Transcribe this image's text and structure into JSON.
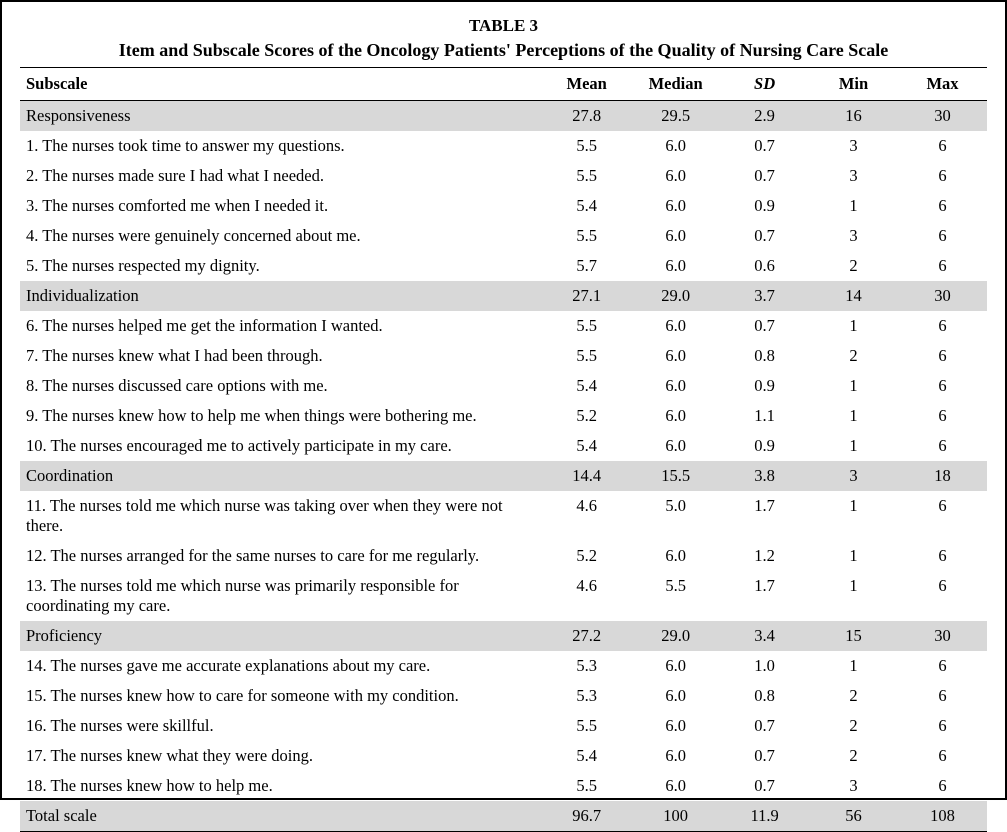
{
  "table": {
    "label": "TABLE 3",
    "title": "Item and Subscale Scores of the Oncology Patients' Perceptions of the Quality of Nursing Care Scale",
    "columns": [
      "Subscale",
      "Mean",
      "Median",
      "SD",
      "Min",
      "Max"
    ],
    "rows": [
      {
        "type": "sub",
        "label": "Responsiveness",
        "mean": "27.8",
        "median": "29.5",
        "sd": "2.9",
        "min": "16",
        "max": "30"
      },
      {
        "type": "item",
        "label": "1. The nurses took time to answer my questions.",
        "mean": "5.5",
        "median": "6.0",
        "sd": "0.7",
        "min": "3",
        "max": "6"
      },
      {
        "type": "item",
        "label": "2. The nurses made sure I had what I needed.",
        "mean": "5.5",
        "median": "6.0",
        "sd": "0.7",
        "min": "3",
        "max": "6"
      },
      {
        "type": "item",
        "label": "3. The nurses comforted me when I needed it.",
        "mean": "5.4",
        "median": "6.0",
        "sd": "0.9",
        "min": "1",
        "max": "6"
      },
      {
        "type": "item",
        "label": "4. The nurses were genuinely concerned about me.",
        "mean": "5.5",
        "median": "6.0",
        "sd": "0.7",
        "min": "3",
        "max": "6"
      },
      {
        "type": "item",
        "label": "5. The nurses respected my dignity.",
        "mean": "5.7",
        "median": "6.0",
        "sd": "0.6",
        "min": "2",
        "max": "6"
      },
      {
        "type": "sub",
        "label": "Individualization",
        "mean": "27.1",
        "median": "29.0",
        "sd": "3.7",
        "min": "14",
        "max": "30"
      },
      {
        "type": "item",
        "label": "6. The nurses helped me get the information I wanted.",
        "mean": "5.5",
        "median": "6.0",
        "sd": "0.7",
        "min": "1",
        "max": "6"
      },
      {
        "type": "item",
        "label": "7. The nurses knew what I had been through.",
        "mean": "5.5",
        "median": "6.0",
        "sd": "0.8",
        "min": "2",
        "max": "6"
      },
      {
        "type": "item",
        "label": "8. The nurses discussed care options with me.",
        "mean": "5.4",
        "median": "6.0",
        "sd": "0.9",
        "min": "1",
        "max": "6"
      },
      {
        "type": "item",
        "label": "9. The nurses knew how to help me when things were bothering me.",
        "mean": "5.2",
        "median": "6.0",
        "sd": "1.1",
        "min": "1",
        "max": "6"
      },
      {
        "type": "item",
        "label": "10. The nurses encouraged me to actively participate in my care.",
        "mean": "5.4",
        "median": "6.0",
        "sd": "0.9",
        "min": "1",
        "max": "6"
      },
      {
        "type": "sub",
        "label": "Coordination",
        "mean": "14.4",
        "median": "15.5",
        "sd": "3.8",
        "min": "3",
        "max": "18"
      },
      {
        "type": "item",
        "label": "11. The nurses told me which nurse was taking over when they were not there.",
        "mean": "4.6",
        "median": "5.0",
        "sd": "1.7",
        "min": "1",
        "max": "6"
      },
      {
        "type": "item",
        "label": "12. The nurses arranged for the same nurses to care for me regularly.",
        "mean": "5.2",
        "median": "6.0",
        "sd": "1.2",
        "min": "1",
        "max": "6"
      },
      {
        "type": "item",
        "label": "13. The nurses told me which nurse was primarily responsible for coordinating my care.",
        "mean": "4.6",
        "median": "5.5",
        "sd": "1.7",
        "min": "1",
        "max": "6"
      },
      {
        "type": "sub",
        "label": "Proficiency",
        "mean": "27.2",
        "median": "29.0",
        "sd": "3.4",
        "min": "15",
        "max": "30"
      },
      {
        "type": "item",
        "label": "14. The nurses gave me accurate explanations about my care.",
        "mean": "5.3",
        "median": "6.0",
        "sd": "1.0",
        "min": "1",
        "max": "6"
      },
      {
        "type": "item",
        "label": "15. The nurses knew how to care for someone with my condition.",
        "mean": "5.3",
        "median": "6.0",
        "sd": "0.8",
        "min": "2",
        "max": "6"
      },
      {
        "type": "item",
        "label": "16. The nurses were skillful.",
        "mean": "5.5",
        "median": "6.0",
        "sd": "0.7",
        "min": "2",
        "max": "6"
      },
      {
        "type": "item",
        "label": "17. The nurses knew what they were doing.",
        "mean": "5.4",
        "median": "6.0",
        "sd": "0.7",
        "min": "2",
        "max": "6"
      },
      {
        "type": "item",
        "label": "18. The nurses knew how to help me.",
        "mean": "5.5",
        "median": "6.0",
        "sd": "0.7",
        "min": "3",
        "max": "6"
      },
      {
        "type": "sub",
        "label": "Total scale",
        "mean": "96.7",
        "median": "100",
        "sd": "11.9",
        "min": "56",
        "max": "108"
      }
    ]
  }
}
